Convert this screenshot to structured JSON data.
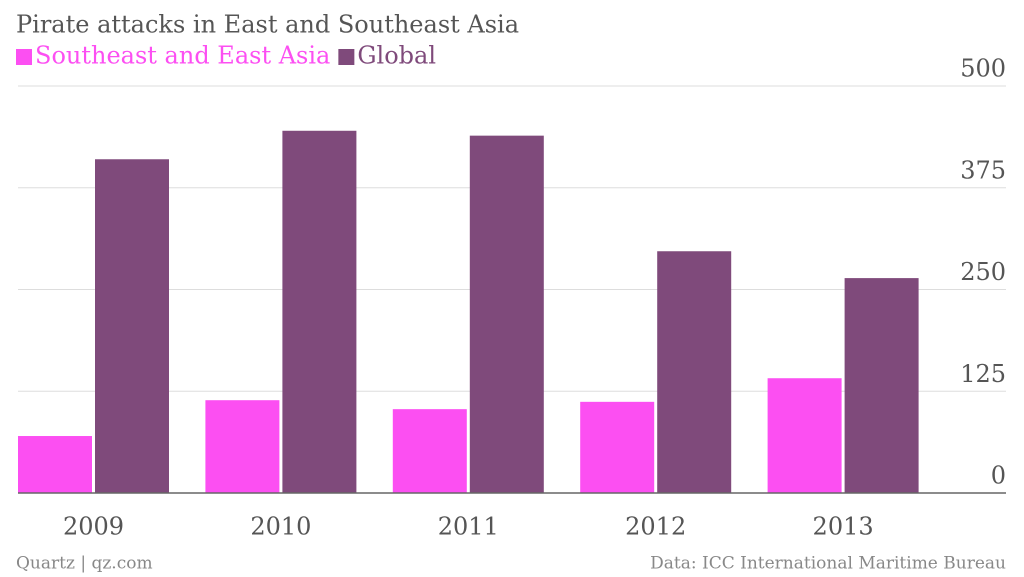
{
  "chart_data": {
    "type": "bar",
    "title": "Pirate attacks in East and Southeast Asia",
    "categories": [
      "2009",
      "2010",
      "2011",
      "2012",
      "2013"
    ],
    "series": [
      {
        "name": "Southeast and East Asia",
        "color": "#fc4ff2",
        "values": [
          70,
          114,
          103,
          112,
          141
        ]
      },
      {
        "name": "Global",
        "color": "#7f4a7b",
        "values": [
          410,
          445,
          439,
          297,
          264
        ]
      }
    ],
    "ylim": [
      0,
      500
    ],
    "yticks": [
      0,
      125,
      250,
      375,
      500
    ],
    "grid": true,
    "source": "Data: ICC International Maritime Bureau",
    "credit": "Quartz | qz.com"
  }
}
